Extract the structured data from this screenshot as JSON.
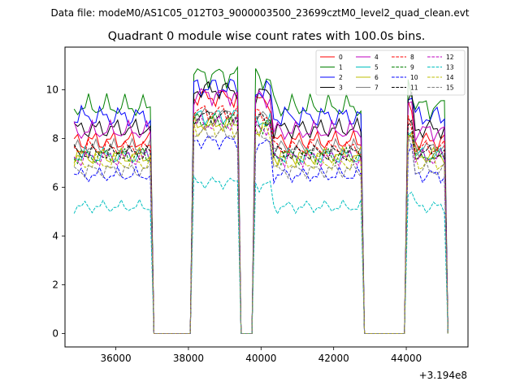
{
  "figure": {
    "suptitle": "Data file: modeM0/AS1C05_012T03_9000003500_23699cztM0_level2_quad_clean.evt"
  },
  "chart_data": {
    "type": "line",
    "title": "Quadrant 0 module wise count rates with 100.0s bins.",
    "xlabel": "",
    "ylabel": "",
    "x_offset_label": "+3.194e8",
    "xlim": [
      34600,
      45700
    ],
    "ylim": [
      -0.55,
      11.75
    ],
    "xticks": [
      36000,
      38000,
      40000,
      42000,
      44000
    ],
    "xtick_labels": [
      "36000",
      "38000",
      "40000",
      "42000",
      "44000"
    ],
    "yticks": [
      0,
      2,
      4,
      6,
      8,
      10
    ],
    "ytick_labels": [
      "0",
      "2",
      "4",
      "6",
      "8",
      "10"
    ],
    "grid": false,
    "legend_position": "top-right",
    "legend_columns": 4,
    "segments": [
      [
        34850,
        36950
      ],
      [
        38150,
        39350
      ],
      [
        39850,
        42800
      ],
      [
        44000,
        45100
      ]
    ],
    "gaps": [
      [
        37050,
        38050
      ],
      [
        39350,
        39850
      ],
      [
        42850,
        43900
      ]
    ],
    "step": 100,
    "series": [
      {
        "name": "0",
        "color": "#ff0000",
        "dash": "solid",
        "level": 7.9,
        "peak": 9.7,
        "amp": 0.45
      },
      {
        "name": "1",
        "color": "#008000",
        "dash": "solid",
        "level": 9.3,
        "peak": 10.6,
        "amp": 0.55
      },
      {
        "name": "2",
        "color": "#0000ff",
        "dash": "solid",
        "level": 8.9,
        "peak": 10.1,
        "amp": 0.5
      },
      {
        "name": "3",
        "color": "#000000",
        "dash": "solid",
        "level": 8.4,
        "peak": 10.0,
        "amp": 0.45
      },
      {
        "name": "4",
        "color": "#bf00bf",
        "dash": "solid",
        "level": 8.3,
        "peak": 9.8,
        "amp": 0.45
      },
      {
        "name": "5",
        "color": "#00bfbf",
        "dash": "solid",
        "level": 7.3,
        "peak": 8.9,
        "amp": 0.4
      },
      {
        "name": "6",
        "color": "#bfbf00",
        "dash": "solid",
        "level": 7.3,
        "peak": 8.6,
        "amp": 0.4
      },
      {
        "name": "7",
        "color": "#808080",
        "dash": "solid",
        "level": 7.6,
        "peak": 9.0,
        "amp": 0.4
      },
      {
        "name": "8",
        "color": "#ff0000",
        "dash": "dashed",
        "level": 7.6,
        "peak": 9.1,
        "amp": 0.4
      },
      {
        "name": "9",
        "color": "#008000",
        "dash": "dashed",
        "level": 7.3,
        "peak": 8.7,
        "amp": 0.4
      },
      {
        "name": "10",
        "color": "#0000ff",
        "dash": "dashed",
        "level": 6.5,
        "peak": 7.9,
        "amp": 0.35
      },
      {
        "name": "11",
        "color": "#000000",
        "dash": "dashed",
        "level": 7.4,
        "peak": 8.9,
        "amp": 0.4
      },
      {
        "name": "12",
        "color": "#bf00bf",
        "dash": "dashed",
        "level": 7.2,
        "peak": 8.6,
        "amp": 0.4
      },
      {
        "name": "13",
        "color": "#00bfbf",
        "dash": "dashed",
        "level": 5.2,
        "peak": 6.2,
        "amp": 0.3
      },
      {
        "name": "14",
        "color": "#bfbf00",
        "dash": "dashed",
        "level": 7.0,
        "peak": 8.4,
        "amp": 0.4
      },
      {
        "name": "15",
        "color": "#808080",
        "dash": "dashed",
        "level": 6.7,
        "peak": 8.2,
        "amp": 0.35
      }
    ]
  }
}
